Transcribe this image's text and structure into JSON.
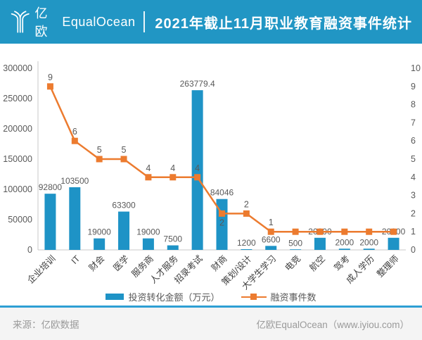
{
  "header": {
    "logo_cn": "亿欧",
    "logo_en": "EqualOcean",
    "title": "2021年截止11月职业教育融资事件统计"
  },
  "colors": {
    "header_bg": "#2196C4",
    "bar": "#1E93C6",
    "line": "#EC7B2F",
    "divider": "#2E9FD4",
    "axis_text": "#595959",
    "axis_line": "#c9c9c9",
    "category_text": "#404040"
  },
  "chart_data": {
    "type": "bar",
    "combo": "bar+line",
    "title": "2021年截止11月职业教育融资事件统计",
    "categories": [
      "企业培训",
      "IT",
      "财会",
      "医学",
      "服务商",
      "人才服务",
      "招录考试",
      "财商",
      "策划/设计",
      "大学生学习",
      "电竞",
      "航空",
      "驾考",
      "成人学历",
      "整理师"
    ],
    "series": [
      {
        "name": "投资转化金额（万元）",
        "type": "bar",
        "axis": "left",
        "values": [
          92800,
          103500,
          19000,
          63300,
          19000,
          7500,
          263779.4,
          84046,
          1200,
          6600,
          500,
          20000,
          2000,
          2000,
          20000
        ],
        "labels": [
          "92800",
          "103500",
          "19000",
          "63300",
          "19000",
          "7500",
          "263779.4",
          "84046",
          "1200",
          "6600",
          "500",
          "20000",
          "2000",
          "2000",
          "20000"
        ]
      },
      {
        "name": "融资事件数",
        "type": "line",
        "axis": "right",
        "values": [
          9,
          6,
          5,
          5,
          4,
          4,
          4,
          2,
          2,
          1,
          1,
          1,
          1,
          1,
          1
        ],
        "labels": [
          "9",
          "6",
          "5",
          "5",
          "4",
          "4",
          "4",
          "2",
          "2",
          "1",
          "",
          "",
          "",
          "",
          ""
        ],
        "label_below_indexes": [
          7
        ]
      }
    ],
    "left_axis": {
      "min": 0,
      "max": 300000,
      "step": 50000
    },
    "right_axis": {
      "min": 0,
      "max": 10,
      "step": 1
    },
    "grid": false,
    "legend_position": "bottom"
  },
  "footer": {
    "source": "来源：亿欧数据",
    "site": "亿欧EqualOcean（www.iyiou.com）"
  }
}
